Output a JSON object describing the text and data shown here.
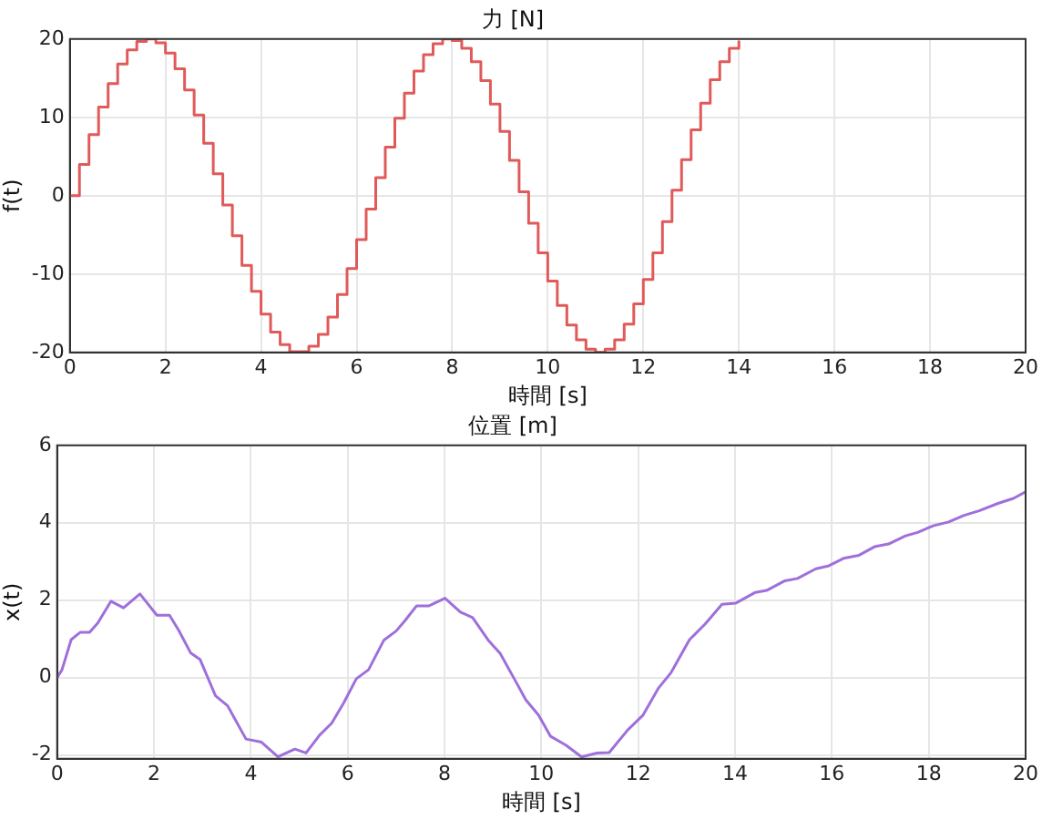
{
  "chart_data": [
    {
      "type": "step",
      "title": "力 [N]",
      "xlabel": "時間 [s]",
      "ylabel": "f(t)",
      "xlim": [
        0,
        20
      ],
      "xticks": [
        0,
        2,
        4,
        6,
        8,
        10,
        12,
        14,
        16,
        18,
        20
      ],
      "ylim": [
        -20,
        20
      ],
      "yticks": [
        -20,
        -10,
        0,
        10,
        20
      ],
      "grid": true,
      "series": [
        {
          "color": "#e05a5a",
          "x": [
            0,
            0.2,
            0.4,
            0.6,
            0.8,
            1,
            1.2,
            1.4,
            1.6,
            1.8,
            2,
            2.2,
            2.4,
            2.6,
            2.8,
            3,
            3.2,
            3.4,
            3.6,
            3.8,
            4,
            4.2,
            4.4,
            4.6,
            4.8,
            5,
            5.2,
            5.4,
            5.6,
            5.8,
            6,
            6.2,
            6.4,
            6.6,
            6.8,
            7,
            7.2,
            7.4,
            7.6,
            7.8,
            8,
            8.2,
            8.4,
            8.6,
            8.8,
            9,
            9.2,
            9.4,
            9.6,
            9.8,
            10,
            10.2,
            10.4,
            10.6,
            10.8,
            11,
            11.2,
            11.4,
            11.6,
            11.8,
            12,
            12.2,
            12.4,
            12.6,
            12.8,
            13,
            13.2,
            13.4,
            13.6,
            13.8,
            14
          ],
          "values": [
            0,
            4,
            7.8,
            11.3,
            14.3,
            16.8,
            18.6,
            19.7,
            20,
            19.5,
            18.2,
            16.2,
            13.5,
            10.3,
            6.7,
            2.8,
            -1.2,
            -5.1,
            -8.9,
            -12.2,
            -15.1,
            -17.4,
            -19,
            -19.9,
            -19.9,
            -19.2,
            -17.7,
            -15.5,
            -12.6,
            -9.3,
            -5.6,
            -1.7,
            2.3,
            6.2,
            9.9,
            13.1,
            15.9,
            18,
            19.4,
            20,
            19.8,
            18.8,
            17.1,
            14.7,
            11.7,
            8.2,
            4.5,
            0.5,
            -3.5,
            -7.3,
            -10.9,
            -14,
            -16.5,
            -18.4,
            -19.6,
            -20,
            -19.6,
            -18.4,
            -16.4,
            -13.8,
            -10.7,
            -7.3,
            -3.3,
            0.7,
            4.6,
            8.4,
            11.8,
            14.8,
            17.1,
            18.8,
            19.8
          ]
        }
      ]
    },
    {
      "type": "line",
      "title": "位置 [m]",
      "xlabel": "時間 [s]",
      "ylabel": "x(t)",
      "xlim": [
        0,
        20
      ],
      "xticks": [
        0,
        2,
        4,
        6,
        8,
        10,
        12,
        14,
        16,
        18,
        20
      ],
      "ylim": [
        -2.1,
        6
      ],
      "yticks": [
        -2,
        0,
        2,
        4,
        6
      ],
      "grid": true,
      "series": [
        {
          "color": "#9f6fdb",
          "x": [
            0,
            0.1,
            0.29,
            0.48,
            0.67,
            0.84,
            1.11,
            1.37,
            1.71,
            2.06,
            2.32,
            2.51,
            2.76,
            2.95,
            3.27,
            3.52,
            3.9,
            4.22,
            4.56,
            4.91,
            5.14,
            5.42,
            5.67,
            5.92,
            6.18,
            6.43,
            6.75,
            7,
            7.19,
            7.42,
            7.67,
            8.01,
            8.33,
            8.58,
            8.9,
            9.15,
            9.47,
            9.68,
            9.94,
            10.19,
            10.51,
            10.83,
            11.15,
            11.4,
            11.78,
            12.1,
            12.42,
            12.68,
            13.06,
            13.38,
            13.73,
            14.01,
            14.42,
            14.65,
            15.03,
            15.29,
            15.67,
            15.92,
            16.24,
            16.56,
            16.88,
            17.17,
            17.52,
            17.77,
            18.09,
            18.41,
            18.73,
            19.04,
            19.43,
            19.75,
            20
          ],
          "values": [
            0,
            0.2,
            0.98,
            1.17,
            1.17,
            1.41,
            1.97,
            1.8,
            2.16,
            1.61,
            1.61,
            1.22,
            0.63,
            0.47,
            -0.47,
            -0.73,
            -1.59,
            -1.67,
            -2.05,
            -1.85,
            -1.95,
            -1.49,
            -1.18,
            -0.65,
            -0.03,
            0.2,
            0.97,
            1.2,
            1.48,
            1.85,
            1.85,
            2.05,
            1.69,
            1.55,
            0.97,
            0.62,
            -0.1,
            -0.58,
            -0.97,
            -1.52,
            -1.75,
            -2.05,
            -1.95,
            -1.94,
            -1.36,
            -0.97,
            -0.27,
            0.13,
            0.98,
            1.38,
            1.89,
            1.92,
            2.2,
            2.25,
            2.5,
            2.56,
            2.81,
            2.88,
            3.08,
            3.16,
            3.38,
            3.45,
            3.66,
            3.75,
            3.92,
            4.02,
            4.19,
            4.31,
            4.5,
            4.63,
            4.8
          ]
        }
      ]
    }
  ]
}
